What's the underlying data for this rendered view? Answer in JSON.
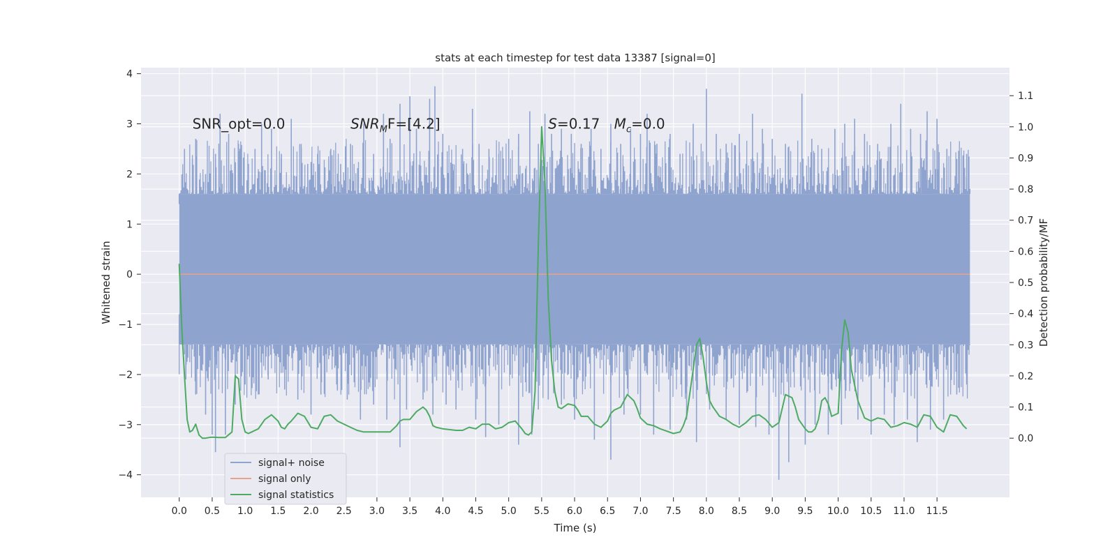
{
  "chart_data": {
    "type": "line",
    "title": "stats at each timestep for test data 13387 [signal=0]",
    "xlabel": "Time (s)",
    "ylabel_left": "Whitened strain",
    "ylabel_right": "Detection probability/MF",
    "xlim": [
      -0.58,
      12.6
    ],
    "ylim_left": [
      -4.45,
      4.12
    ],
    "ylim_right": [
      -0.19,
      1.19
    ],
    "xticks": [
      0.0,
      0.5,
      1.0,
      1.5,
      2.0,
      2.5,
      3.0,
      3.5,
      4.0,
      4.5,
      5.0,
      5.5,
      6.0,
      6.5,
      7.0,
      7.5,
      8.0,
      8.5,
      9.0,
      9.5,
      10.0,
      10.5,
      11.0,
      11.5
    ],
    "xtick_labels": [
      "0.0",
      "0.5",
      "1.0",
      "1.5",
      "2.0",
      "2.5",
      "3.0",
      "3.5",
      "4.0",
      "4.5",
      "5.0",
      "5.5",
      "6.0",
      "6.5",
      "7.0",
      "7.5",
      "8.0",
      "8.5",
      "9.0",
      "9.5",
      "10.0",
      "10.5",
      "11.0",
      "11.5"
    ],
    "yticks_left": [
      -4,
      -3,
      -2,
      -1,
      0,
      1,
      2,
      3,
      4
    ],
    "ytick_labels_left": [
      "−4",
      "−3",
      "−2",
      "−1",
      "0",
      "1",
      "2",
      "3",
      "4"
    ],
    "yticks_right": [
      0.0,
      0.1,
      0.2,
      0.3,
      0.4,
      0.5,
      0.6,
      0.7,
      0.8,
      0.9,
      1.0,
      1.1
    ],
    "ytick_labels_right": [
      "0.0",
      "0.1",
      "0.2",
      "0.3",
      "0.4",
      "0.5",
      "0.6",
      "0.7",
      "0.8",
      "0.9",
      "1.0",
      "1.1"
    ],
    "grid": true,
    "legend_position": "lower-left",
    "annotations": [
      {
        "text": "SNR_opt=0.0",
        "x": 0.2,
        "y": 3.0
      },
      {
        "text": "SNR",
        "sub": "M",
        "text2": "F=[4.2]",
        "x": 2.6,
        "y": 3.0,
        "italic": true
      },
      {
        "text": "S",
        "text2": "=0.17",
        "x": 5.6,
        "y": 3.0,
        "italic": true
      },
      {
        "text": "M",
        "sub": "c",
        "text2": "=0.0",
        "x": 6.6,
        "y": 3.0,
        "italic": true
      }
    ],
    "series": [
      {
        "name": "signal+ noise",
        "axis": "left",
        "color": "#8fa3cf",
        "style": "dense-noise",
        "x_start": 0.0,
        "x_end": 12.0,
        "envelope": [
          -1.4,
          1.6
        ],
        "upper_spikes": [
          [
            0.0,
            1.4
          ],
          [
            0.08,
            2.5
          ],
          [
            0.2,
            2.3
          ],
          [
            0.25,
            2.7
          ],
          [
            0.4,
            2.0
          ],
          [
            0.55,
            2.4
          ],
          [
            0.62,
            3.2
          ],
          [
            0.75,
            2.8
          ],
          [
            0.9,
            2.6
          ],
          [
            1.05,
            2.2
          ],
          [
            1.15,
            2.5
          ],
          [
            1.25,
            3.0
          ],
          [
            1.4,
            2.9
          ],
          [
            1.55,
            2.4
          ],
          [
            1.7,
            3.1
          ],
          [
            1.85,
            2.6
          ],
          [
            1.95,
            2.2
          ],
          [
            2.1,
            2.4
          ],
          [
            2.3,
            2.5
          ],
          [
            2.45,
            2.2
          ],
          [
            2.6,
            2.6
          ],
          [
            2.8,
            3.0
          ],
          [
            2.95,
            2.4
          ],
          [
            3.1,
            3.2
          ],
          [
            3.2,
            2.7
          ],
          [
            3.35,
            3.4
          ],
          [
            3.5,
            3.55
          ],
          [
            3.6,
            2.9
          ],
          [
            3.8,
            3.5
          ],
          [
            3.88,
            3.75
          ],
          [
            4.0,
            2.8
          ],
          [
            4.15,
            2.2
          ],
          [
            4.3,
            2.5
          ],
          [
            4.45,
            3.3
          ],
          [
            4.55,
            2.6
          ],
          [
            4.7,
            2.5
          ],
          [
            4.85,
            2.4
          ],
          [
            5.0,
            2.7
          ],
          [
            5.15,
            2.8
          ],
          [
            5.32,
            3.25
          ],
          [
            5.45,
            2.6
          ],
          [
            5.55,
            3.2
          ],
          [
            5.65,
            2.8
          ],
          [
            5.8,
            2.9
          ],
          [
            5.95,
            2.8
          ],
          [
            6.1,
            2.6
          ],
          [
            6.25,
            2.9
          ],
          [
            6.4,
            2.5
          ],
          [
            6.55,
            3.0
          ],
          [
            6.7,
            2.6
          ],
          [
            6.85,
            2.9
          ],
          [
            7.0,
            2.8
          ],
          [
            7.1,
            3.2
          ],
          [
            7.25,
            2.6
          ],
          [
            7.45,
            2.8
          ],
          [
            7.6,
            2.4
          ],
          [
            7.8,
            3.0
          ],
          [
            8.0,
            3.7
          ],
          [
            8.15,
            2.8
          ],
          [
            8.3,
            2.6
          ],
          [
            8.5,
            2.8
          ],
          [
            8.7,
            3.2
          ],
          [
            8.85,
            2.9
          ],
          [
            9.0,
            2.7
          ],
          [
            9.2,
            2.6
          ],
          [
            9.45,
            3.6
          ],
          [
            9.6,
            2.7
          ],
          [
            9.75,
            2.5
          ],
          [
            9.95,
            2.9
          ],
          [
            10.1,
            3.0
          ],
          [
            10.25,
            3.1
          ],
          [
            10.4,
            2.8
          ],
          [
            10.6,
            2.6
          ],
          [
            10.8,
            3.0
          ],
          [
            10.95,
            3.4
          ],
          [
            11.1,
            2.9
          ],
          [
            11.25,
            2.8
          ],
          [
            11.35,
            3.25
          ],
          [
            11.5,
            3.1
          ],
          [
            11.65,
            2.5
          ],
          [
            11.8,
            2.3
          ],
          [
            11.95,
            2.4
          ]
        ],
        "lower_spikes": [
          [
            0.0,
            -0.8
          ],
          [
            0.1,
            -2.1
          ],
          [
            0.25,
            -2.4
          ],
          [
            0.4,
            -2.8
          ],
          [
            0.5,
            -3.2
          ],
          [
            0.55,
            -3.55
          ],
          [
            0.7,
            -3.2
          ],
          [
            0.85,
            -2.6
          ],
          [
            1.0,
            -2.2
          ],
          [
            1.2,
            -2.4
          ],
          [
            1.35,
            -2.1
          ],
          [
            1.6,
            -2.3
          ],
          [
            1.8,
            -2.5
          ],
          [
            2.0,
            -2.8
          ],
          [
            2.15,
            -2.4
          ],
          [
            2.4,
            -2.3
          ],
          [
            2.55,
            -2.5
          ],
          [
            2.75,
            -2.9
          ],
          [
            2.95,
            -2.6
          ],
          [
            3.15,
            -2.9
          ],
          [
            3.35,
            -3.45
          ],
          [
            3.45,
            -2.7
          ],
          [
            3.7,
            -2.5
          ],
          [
            3.85,
            -2.8
          ],
          [
            4.05,
            -2.6
          ],
          [
            4.2,
            -2.7
          ],
          [
            4.5,
            -2.9
          ],
          [
            4.65,
            -3.25
          ],
          [
            4.85,
            -3.0
          ],
          [
            5.15,
            -3.4
          ],
          [
            5.35,
            -3.2
          ],
          [
            5.45,
            -2.7
          ],
          [
            5.6,
            -2.5
          ],
          [
            5.8,
            -2.6
          ],
          [
            6.0,
            -2.9
          ],
          [
            6.3,
            -3.3
          ],
          [
            6.55,
            -3.7
          ],
          [
            6.75,
            -2.8
          ],
          [
            7.0,
            -2.8
          ],
          [
            7.2,
            -3.2
          ],
          [
            7.45,
            -3.1
          ],
          [
            7.7,
            -2.9
          ],
          [
            7.85,
            -3.35
          ],
          [
            8.05,
            -2.7
          ],
          [
            8.3,
            -2.9
          ],
          [
            8.5,
            -3.0
          ],
          [
            8.75,
            -3.05
          ],
          [
            8.95,
            -3.2
          ],
          [
            9.1,
            -4.1
          ],
          [
            9.25,
            -3.75
          ],
          [
            9.5,
            -3.4
          ],
          [
            9.65,
            -3.0
          ],
          [
            9.85,
            -3.2
          ],
          [
            10.05,
            -3.0
          ],
          [
            10.3,
            -2.9
          ],
          [
            10.5,
            -3.2
          ],
          [
            10.7,
            -2.8
          ],
          [
            10.85,
            -3.0
          ],
          [
            11.05,
            -2.9
          ],
          [
            11.2,
            -3.35
          ],
          [
            11.4,
            -3.1
          ],
          [
            11.6,
            -2.9
          ],
          [
            11.8,
            -2.4
          ],
          [
            11.95,
            -2.2
          ]
        ]
      },
      {
        "name": "signal only",
        "axis": "left",
        "color": "#e8a28a",
        "x": [
          0.0,
          12.0
        ],
        "y": [
          0.0,
          0.0
        ]
      },
      {
        "name": "signal statistics",
        "axis": "right",
        "color": "#4caa62",
        "x": [
          0.0,
          0.04,
          0.08,
          0.12,
          0.16,
          0.2,
          0.25,
          0.3,
          0.35,
          0.4,
          0.45,
          0.5,
          0.6,
          0.7,
          0.8,
          0.85,
          0.9,
          0.95,
          1.0,
          1.05,
          1.1,
          1.15,
          1.2,
          1.3,
          1.4,
          1.5,
          1.55,
          1.6,
          1.65,
          1.7,
          1.8,
          1.9,
          2.0,
          2.1,
          2.15,
          2.2,
          2.3,
          2.4,
          2.5,
          2.6,
          2.7,
          2.8,
          3.0,
          3.2,
          3.3,
          3.35,
          3.4,
          3.5,
          3.6,
          3.7,
          3.75,
          3.8,
          3.85,
          3.9,
          4.0,
          4.2,
          4.3,
          4.4,
          4.5,
          4.6,
          4.7,
          4.8,
          4.9,
          5.0,
          5.1,
          5.2,
          5.25,
          5.3,
          5.35,
          5.4,
          5.45,
          5.5,
          5.55,
          5.6,
          5.65,
          5.7,
          5.75,
          5.8,
          5.9,
          6.0,
          6.05,
          6.1,
          6.2,
          6.3,
          6.4,
          6.5,
          6.55,
          6.6,
          6.7,
          6.8,
          6.9,
          6.95,
          7.0,
          7.1,
          7.2,
          7.3,
          7.5,
          7.6,
          7.65,
          7.7,
          7.8,
          7.85,
          7.9,
          7.95,
          8.0,
          8.05,
          8.1,
          8.2,
          8.3,
          8.4,
          8.5,
          8.6,
          8.7,
          8.8,
          8.9,
          9.0,
          9.1,
          9.2,
          9.3,
          9.35,
          9.4,
          9.5,
          9.55,
          9.6,
          9.65,
          9.7,
          9.75,
          9.8,
          9.85,
          9.9,
          10.0,
          10.05,
          10.1,
          10.15,
          10.2,
          10.3,
          10.4,
          10.5,
          10.6,
          10.7,
          10.8,
          10.9,
          11.0,
          11.1,
          11.2,
          11.3,
          11.4,
          11.5,
          11.6,
          11.7,
          11.8,
          11.9,
          11.95
        ],
        "y": [
          0.56,
          0.35,
          0.2,
          0.06,
          0.02,
          0.025,
          0.045,
          0.01,
          0.0,
          0.0,
          0.002,
          0.003,
          0.002,
          0.002,
          0.02,
          0.2,
          0.19,
          0.06,
          0.02,
          0.015,
          0.02,
          0.025,
          0.03,
          0.06,
          0.075,
          0.055,
          0.035,
          0.03,
          0.045,
          0.055,
          0.08,
          0.07,
          0.035,
          0.03,
          0.05,
          0.07,
          0.075,
          0.055,
          0.045,
          0.035,
          0.025,
          0.02,
          0.02,
          0.02,
          0.04,
          0.055,
          0.06,
          0.06,
          0.085,
          0.1,
          0.09,
          0.07,
          0.04,
          0.035,
          0.03,
          0.025,
          0.025,
          0.035,
          0.03,
          0.045,
          0.045,
          0.03,
          0.035,
          0.05,
          0.055,
          0.03,
          0.015,
          0.01,
          0.02,
          0.15,
          0.62,
          1.0,
          0.82,
          0.45,
          0.25,
          0.15,
          0.1,
          0.095,
          0.11,
          0.105,
          0.09,
          0.07,
          0.07,
          0.045,
          0.035,
          0.055,
          0.08,
          0.09,
          0.1,
          0.14,
          0.12,
          0.095,
          0.065,
          0.045,
          0.04,
          0.03,
          0.015,
          0.02,
          0.04,
          0.07,
          0.22,
          0.3,
          0.32,
          0.26,
          0.18,
          0.12,
          0.1,
          0.07,
          0.06,
          0.045,
          0.035,
          0.05,
          0.07,
          0.075,
          0.06,
          0.035,
          0.05,
          0.14,
          0.13,
          0.1,
          0.06,
          0.03,
          0.02,
          0.02,
          0.03,
          0.06,
          0.12,
          0.13,
          0.11,
          0.07,
          0.08,
          0.28,
          0.38,
          0.34,
          0.22,
          0.12,
          0.065,
          0.055,
          0.065,
          0.06,
          0.035,
          0.04,
          0.05,
          0.045,
          0.035,
          0.075,
          0.07,
          0.035,
          0.02,
          0.075,
          0.07,
          0.04,
          0.03
        ]
      }
    ],
    "legend": [
      "signal+ noise",
      "signal only",
      "signal statistics"
    ]
  }
}
